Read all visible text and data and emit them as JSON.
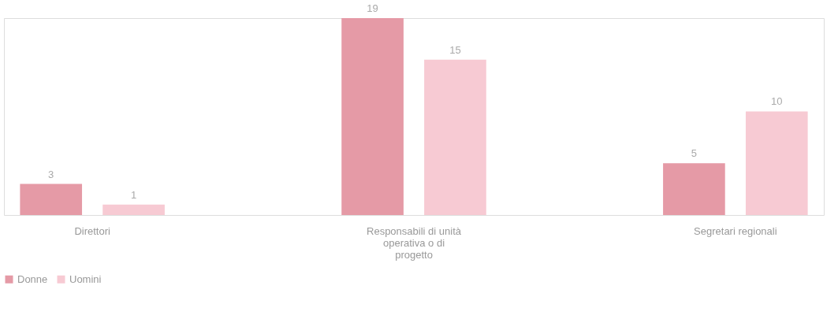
{
  "chart_data": {
    "type": "bar",
    "categories": [
      "Direttori",
      "Responsabili di unità operativa o di progetto",
      "Segretari regionali"
    ],
    "series": [
      {
        "name": "Donne",
        "color": "#e59aa6",
        "values": [
          3,
          19,
          5
        ]
      },
      {
        "name": "Uomini",
        "color": "#f7cad3",
        "values": [
          1,
          15,
          10
        ]
      }
    ],
    "data_labels": true,
    "legend": "bottom",
    "grid": false
  }
}
